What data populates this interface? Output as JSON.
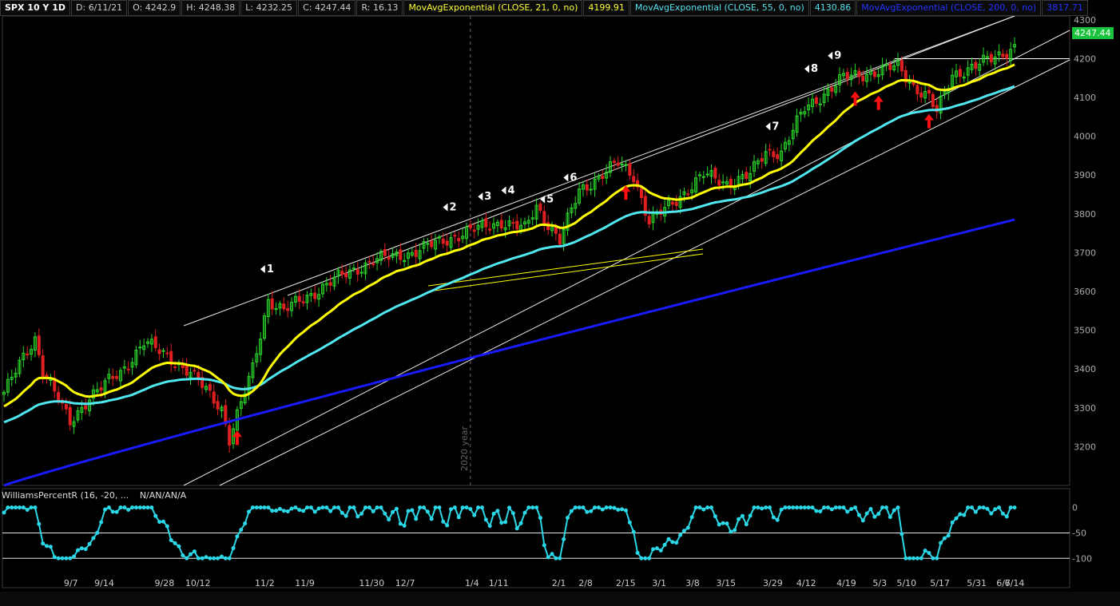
{
  "header": {
    "symbol": "SPX 10 Y 1D",
    "date": "D: 6/11/21",
    "open": "O: 4242.9",
    "high": "H: 4248.38",
    "low": "L: 4232.25",
    "close": "C: 4247.44",
    "range": "R: 16.13",
    "ema21_label": "MovAvgExponential (CLOSE, 21, 0, no)",
    "ema21_value": "4199.91",
    "ema55_label": "MovAvgExponential (CLOSE, 55, 0, no)",
    "ema55_value": "4130.86",
    "ema200_label": "MovAvgExponential (CLOSE, 200, 0, no)",
    "ema200_value": "3817.71"
  },
  "last_price": "4247.44",
  "subpanel": {
    "label": "WilliamsPercentR (16, -20, ...",
    "values": "N/AN/AN/A"
  },
  "colors": {
    "up": "#2bd62b",
    "down": "#e02020",
    "ema21": "#ffff00",
    "ema55": "#4fe8f0",
    "ema200": "#1a1aff",
    "wr": "#2ad8e8",
    "arrow": "#ff1010"
  },
  "chart_data": {
    "type": "line",
    "instrument": "SPX",
    "y_ticks": [
      3200,
      3300,
      3400,
      3500,
      3600,
      3700,
      3800,
      3900,
      4000,
      4100,
      4200,
      4300
    ],
    "ylim": [
      3100,
      4310
    ],
    "x_labels": [
      "9/7",
      "9/14",
      "9/28",
      "10/12",
      "11/2",
      "11/9",
      "11/30",
      "12/7",
      "1/4",
      "1/11",
      "2/1",
      "2/8",
      "2/15",
      "3/1",
      "3/8",
      "3/15",
      "3/29",
      "4/12",
      "4/19",
      "5/3",
      "5/10",
      "5/17",
      "5/31",
      "6/7",
      "6/14"
    ],
    "year_marker": "2020 year",
    "close_keypoints": [
      [
        0,
        3340
      ],
      [
        8,
        3480
      ],
      [
        10,
        3400
      ],
      [
        17,
        3260
      ],
      [
        22,
        3330
      ],
      [
        30,
        3390
      ],
      [
        36,
        3470
      ],
      [
        44,
        3420
      ],
      [
        48,
        3390
      ],
      [
        56,
        3300
      ],
      [
        58,
        3220
      ],
      [
        64,
        3400
      ],
      [
        68,
        3580
      ],
      [
        72,
        3550
      ],
      [
        85,
        3630
      ],
      [
        95,
        3680
      ],
      [
        105,
        3700
      ],
      [
        118,
        3750
      ],
      [
        128,
        3780
      ],
      [
        134,
        3760
      ],
      [
        137,
        3820
      ],
      [
        143,
        3730
      ],
      [
        148,
        3860
      ],
      [
        158,
        3930
      ],
      [
        162,
        3900
      ],
      [
        166,
        3780
      ],
      [
        170,
        3810
      ],
      [
        180,
        3900
      ],
      [
        186,
        3880
      ],
      [
        192,
        3900
      ],
      [
        196,
        3960
      ],
      [
        200,
        3960
      ],
      [
        206,
        4070
      ],
      [
        216,
        4150
      ],
      [
        226,
        4170
      ],
      [
        230,
        4180
      ],
      [
        234,
        4130
      ],
      [
        238,
        4100
      ],
      [
        240,
        4060
      ],
      [
        244,
        4160
      ],
      [
        250,
        4180
      ],
      [
        260,
        4230
      ]
    ],
    "ema21_series": "EMA(21) of close",
    "ema55_series": "EMA(55) of close",
    "ema200_series": "EMA(200) of close",
    "ema200_start": 3100,
    "ema200_end": 3785,
    "wave_labels": [
      "1",
      "2",
      "3",
      "4",
      "5",
      "6",
      "7",
      "8",
      "9"
    ],
    "wave_labels_x": [
      68,
      115,
      124,
      130,
      140,
      146,
      198,
      208,
      214
    ],
    "support_arrows_x": [
      60,
      160,
      219,
      225,
      238
    ],
    "indicator": {
      "name": "Williams %R",
      "y_ticks": [
        0,
        -50,
        -100
      ],
      "ylim": [
        -120,
        12
      ]
    },
    "bars": 261
  }
}
